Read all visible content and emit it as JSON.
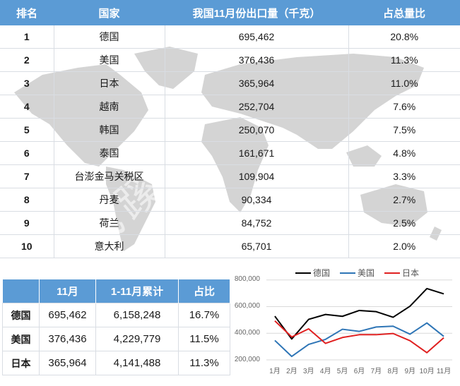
{
  "main_table": {
    "headers": [
      "排名",
      "国家",
      "我国11月份出口量（千克）",
      "占总量比"
    ],
    "rows": [
      {
        "rank": "1",
        "country": "德国",
        "volume": "695,462",
        "share": "20.8%"
      },
      {
        "rank": "2",
        "country": "美国",
        "volume": "376,436",
        "share": "11.3%"
      },
      {
        "rank": "3",
        "country": "日本",
        "volume": "365,964",
        "share": "11.0%"
      },
      {
        "rank": "4",
        "country": "越南",
        "volume": "252,704",
        "share": "7.6%"
      },
      {
        "rank": "5",
        "country": "韩国",
        "volume": "250,070",
        "share": "7.5%"
      },
      {
        "rank": "6",
        "country": "泰国",
        "volume": "161,671",
        "share": "4.8%"
      },
      {
        "rank": "7",
        "country": "台澎金马关税区",
        "volume": "109,904",
        "share": "3.3%"
      },
      {
        "rank": "8",
        "country": "丹麦",
        "volume": "90,334",
        "share": "2.7%"
      },
      {
        "rank": "9",
        "country": "荷兰",
        "volume": "84,752",
        "share": "2.5%"
      },
      {
        "rank": "10",
        "country": "意大利",
        "volume": "65,701",
        "share": "2.0%"
      }
    ]
  },
  "sub_table": {
    "headers": [
      "",
      "11月",
      "1-11月累计",
      "占比"
    ],
    "rows": [
      {
        "country": "德国",
        "nov": "695,462",
        "cumulative": "6,158,248",
        "share": "16.7%"
      },
      {
        "country": "美国",
        "nov": "376,436",
        "cumulative": "4,229,779",
        "share": "11.5%"
      },
      {
        "country": "日本",
        "nov": "365,964",
        "cumulative": "4,141,488",
        "share": "11.3%"
      }
    ]
  },
  "watermark": "@找蹊材",
  "colors": {
    "header_blue": "#5b9bd5",
    "germany": "#000000",
    "usa": "#2e75b6",
    "japan": "#e02020",
    "map_gray": "#d4d4d4"
  },
  "chart_data": {
    "type": "line",
    "title": "",
    "xlabel": "",
    "ylabel": "",
    "categories": [
      "1月",
      "2月",
      "3月",
      "4月",
      "5月",
      "6月",
      "7月",
      "8月",
      "9月",
      "10月",
      "11月"
    ],
    "series": [
      {
        "name": "德国",
        "color": "#000000",
        "values": [
          528000,
          357000,
          504000,
          541000,
          527000,
          571000,
          562000,
          520000,
          603000,
          735000,
          695462
        ]
      },
      {
        "name": "美国",
        "color": "#2e75b6",
        "values": [
          346000,
          226000,
          316000,
          354000,
          430000,
          414000,
          447000,
          453000,
          393000,
          477000,
          376436
        ]
      },
      {
        "name": "日本",
        "color": "#e02020",
        "values": [
          493000,
          372000,
          433000,
          324000,
          368000,
          389000,
          389000,
          398000,
          344000,
          254000,
          365964
        ]
      }
    ],
    "yticks": [
      "200,000",
      "400,000",
      "600,000",
      "800,000"
    ],
    "ylim": [
      200000,
      800000
    ],
    "grid": true,
    "legend_position": "top"
  }
}
